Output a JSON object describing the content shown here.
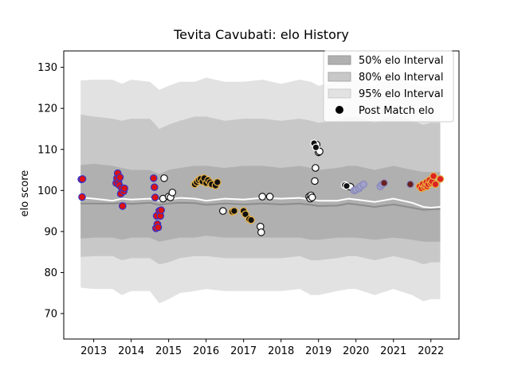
{
  "chart_data": {
    "type": "scatter",
    "title": "Tevita Cavubati: elo History",
    "xlabel": "",
    "ylabel": "elo score",
    "xlim": [
      2012.2,
      2022.75
    ],
    "ylim": [
      63.8,
      134
    ],
    "xticks": [
      2013,
      2014,
      2015,
      2016,
      2017,
      2018,
      2019,
      2020,
      2021,
      2022
    ],
    "yticks": [
      70,
      80,
      90,
      100,
      110,
      120,
      130
    ],
    "legend": {
      "placement": "top-right",
      "entries": [
        "50% elo Interval",
        "80% elo Interval",
        "95% elo Interval",
        "Post Match elo"
      ]
    },
    "colors": {
      "band50": "#b0b0b0",
      "band80": "#c8c8c8",
      "band95": "#e2e2e2",
      "median": "#ffffff",
      "mean": "#8c8c8c"
    },
    "bands": {
      "x": [
        2012.65,
        2013.0,
        2013.5,
        2013.75,
        2014.0,
        2014.5,
        2014.75,
        2015.0,
        2015.3,
        2015.7,
        2016.0,
        2016.5,
        2017.0,
        2017.5,
        2018.0,
        2018.5,
        2018.8,
        2019.0,
        2019.5,
        2019.8,
        2020.0,
        2020.5,
        2021.0,
        2021.5,
        2021.8,
        2022.0,
        2022.25
      ],
      "p95_upper": [
        126.8,
        127.0,
        127.0,
        126.0,
        127.0,
        126.5,
        124.5,
        125.5,
        126.5,
        126.5,
        127.5,
        126.5,
        126.5,
        127.0,
        126.0,
        127.0,
        126.5,
        125.5,
        126.5,
        127.0,
        127.0,
        125.5,
        128.0,
        126.0,
        125.0,
        125.5,
        125.5
      ],
      "p80_upper": [
        118.5,
        118.0,
        117.5,
        117.0,
        117.5,
        117.5,
        115.0,
        116.0,
        117.0,
        118.0,
        118.0,
        117.0,
        117.5,
        117.5,
        117.0,
        117.5,
        117.0,
        116.5,
        117.0,
        118.0,
        118.0,
        116.5,
        118.5,
        117.0,
        116.0,
        116.5,
        116.5
      ],
      "p50_upper": [
        106.2,
        106.5,
        106.0,
        105.5,
        105.0,
        105.0,
        104.0,
        105.0,
        105.5,
        106.0,
        106.0,
        105.5,
        106.0,
        106.0,
        105.5,
        106.0,
        105.5,
        105.0,
        105.5,
        106.0,
        106.0,
        105.0,
        106.0,
        105.0,
        104.5,
        104.5,
        104.5
      ],
      "p50_lower": [
        88.3,
        88.5,
        88.5,
        88.0,
        88.5,
        88.5,
        87.5,
        88.0,
        88.5,
        88.5,
        89.0,
        88.5,
        88.5,
        88.5,
        88.5,
        88.5,
        88.0,
        88.0,
        88.5,
        88.5,
        88.5,
        88.0,
        88.5,
        88.0,
        87.5,
        87.5,
        87.5
      ],
      "p80_lower": [
        83.8,
        84.0,
        84.0,
        83.0,
        83.5,
        83.5,
        82.0,
        82.5,
        83.5,
        84.0,
        84.0,
        83.5,
        83.5,
        83.5,
        83.5,
        84.0,
        83.0,
        83.0,
        83.5,
        84.0,
        84.0,
        83.0,
        84.0,
        83.0,
        82.0,
        82.5,
        82.5
      ],
      "p95_lower": [
        76.3,
        76.0,
        76.0,
        74.5,
        75.5,
        75.5,
        72.5,
        73.5,
        75.0,
        75.5,
        76.0,
        75.5,
        75.5,
        75.5,
        75.5,
        76.0,
        74.5,
        74.5,
        75.5,
        76.0,
        76.0,
        74.5,
        76.0,
        74.5,
        73.0,
        73.5,
        73.5
      ],
      "median": [
        98.3,
        98.0,
        97.5,
        98.0,
        97.8,
        98.0,
        97.5,
        97.8,
        98.2,
        98.0,
        97.5,
        98.0,
        97.8,
        98.2,
        98.0,
        98.2,
        97.8,
        97.5,
        97.5,
        98.0,
        97.8,
        97.2,
        98.0,
        97.0,
        96.0,
        95.8,
        96.0
      ],
      "mean": [
        96.8,
        96.8,
        96.8,
        96.9,
        96.7,
        97.0,
        96.5,
        96.8,
        97.0,
        96.9,
        96.5,
        96.8,
        96.6,
        96.8,
        96.6,
        96.8,
        96.5,
        96.2,
        96.3,
        96.8,
        96.6,
        96.0,
        96.6,
        95.8,
        95.3,
        95.4,
        95.5
      ]
    },
    "series": [
      {
        "fill": "#dd1111",
        "edge": "#3333cc",
        "x": [
          2012.67,
          2012.7,
          2012.69,
          2013.6,
          2013.62,
          2013.64,
          2013.66,
          2013.68,
          2013.7,
          2013.72,
          2013.75,
          2013.8,
          2013.82,
          2013.77,
          2014.6,
          2014.62,
          2014.64,
          2014.66,
          2014.68,
          2014.7,
          2014.72,
          2014.75,
          2014.78,
          2014.8
        ],
        "y": [
          102.7,
          102.8,
          98.4,
          101.8,
          103.0,
          104.2,
          102.0,
          101.3,
          103.2,
          99.2,
          100.5,
          99.8,
          100.5,
          96.2,
          103.0,
          100.8,
          98.3,
          90.8,
          93.8,
          91.8,
          91.0,
          95.0,
          93.8,
          95.2
        ]
      },
      {
        "fill": "#ffffff",
        "edge": "#111111",
        "x": [
          2014.85,
          2014.88,
          2015.0,
          2015.05,
          2015.1,
          2016.45,
          2017.45,
          2017.47,
          2017.5,
          2017.7,
          2018.75,
          2018.78,
          2018.8,
          2018.83,
          2018.9,
          2018.92,
          2018.95,
          2019.0,
          2019.03,
          2019.8,
          2019.85
        ],
        "y": [
          98.0,
          103.0,
          98.5,
          98.3,
          99.5,
          95.0,
          91.2,
          89.8,
          98.5,
          98.5,
          98.5,
          98.0,
          98.8,
          98.3,
          102.3,
          105.5,
          111.2,
          109.3,
          109.5,
          101.0,
          100.9
        ]
      },
      {
        "fill": "#111111",
        "edge": "#e8b040",
        "x": [
          2015.7,
          2015.75,
          2015.8,
          2015.85,
          2015.9,
          2015.95,
          2016.0,
          2016.05,
          2016.1,
          2016.15,
          2016.25,
          2016.3,
          2016.7,
          2016.75,
          2017.0,
          2017.05,
          2017.15,
          2017.2
        ],
        "y": [
          101.5,
          102.0,
          102.5,
          102.8,
          102.2,
          103.0,
          101.8,
          102.5,
          102.0,
          101.5,
          101.2,
          102.0,
          94.8,
          95.0,
          95.0,
          94.2,
          93.0,
          92.8
        ]
      },
      {
        "fill": "#111111",
        "edge": "#ffffff",
        "x": [
          2018.88,
          2018.93,
          2019.7,
          2019.75
        ],
        "y": [
          111.5,
          110.5,
          101.3,
          101.1
        ]
      },
      {
        "fill": "#a0a0c8",
        "edge": "#8888bb",
        "x": [
          2019.95,
          2020.0,
          2020.08,
          2020.12,
          2020.2,
          2020.65,
          2020.7
        ],
        "y": [
          100.0,
          100.2,
          100.5,
          101.0,
          101.5,
          101.0,
          101.5
        ]
      },
      {
        "fill": "#6a2020",
        "edge": "#8888bb",
        "x": [
          2020.75,
          2021.45
        ],
        "y": [
          101.8,
          101.5
        ]
      },
      {
        "fill": "#dd2222",
        "edge": "#e8b040",
        "x": [
          2021.7,
          2021.75,
          2021.78,
          2021.82,
          2021.85,
          2021.88,
          2021.9,
          2021.93,
          2021.96,
          2022.0,
          2022.03,
          2022.07,
          2022.12,
          2022.25
        ],
        "y": [
          101.0,
          100.5,
          101.5,
          100.8,
          101.2,
          102.0,
          101.0,
          101.5,
          102.5,
          101.8,
          102.2,
          103.5,
          101.5,
          102.8
        ]
      }
    ]
  }
}
